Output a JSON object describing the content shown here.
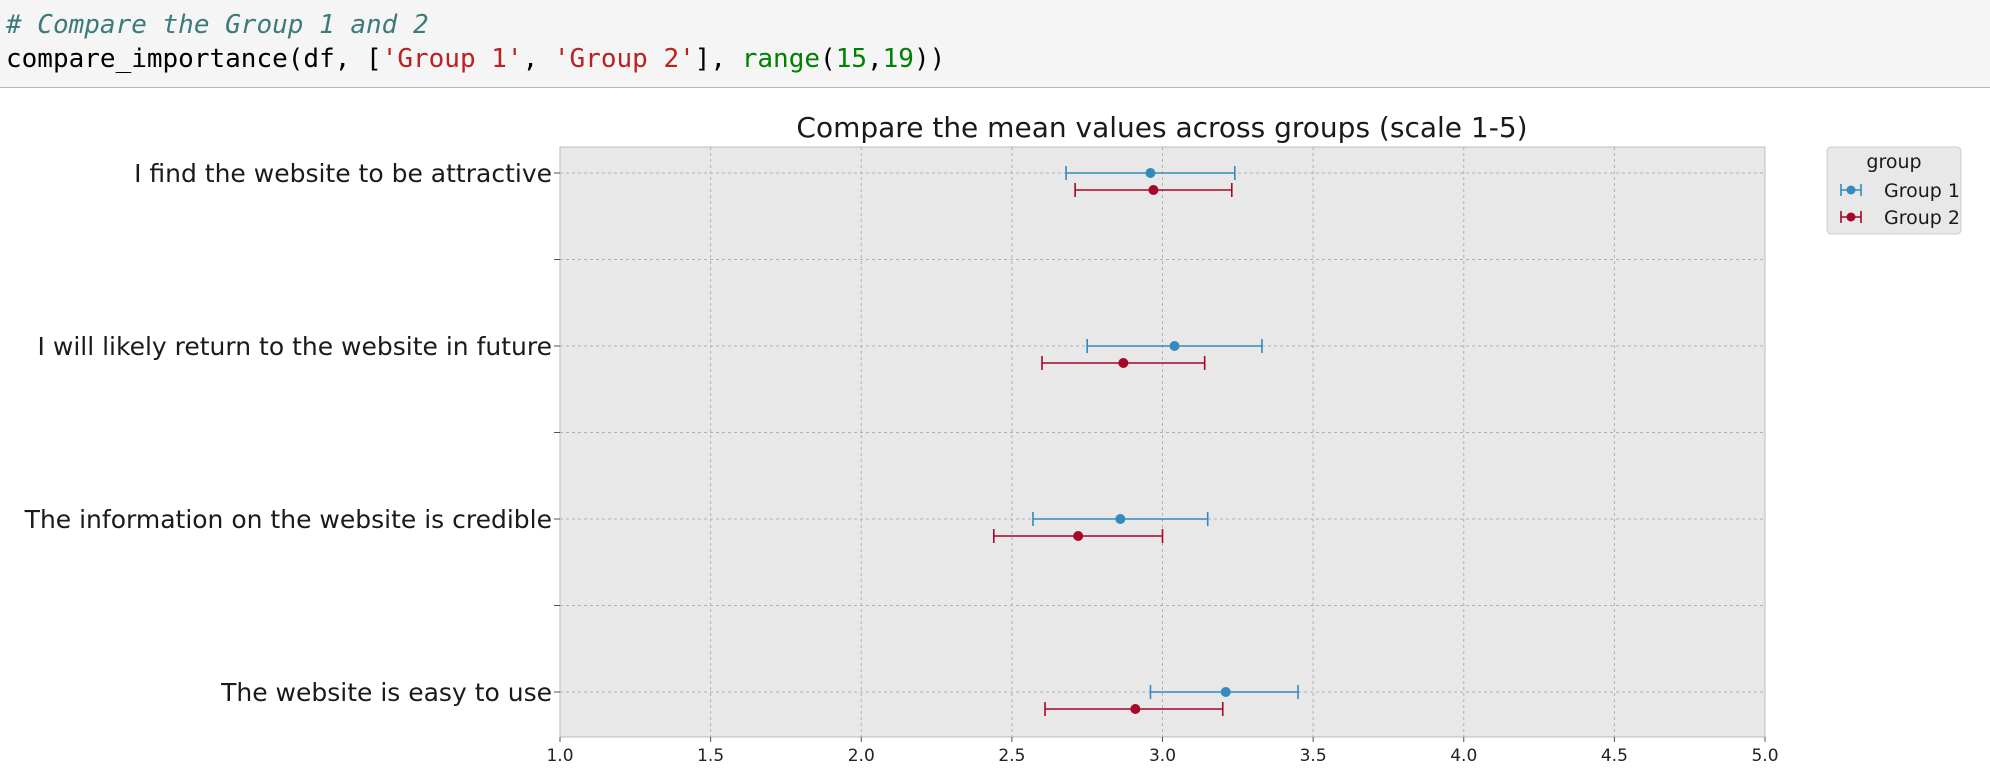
{
  "code": {
    "comment": "# Compare the Group 1 and 2",
    "func": "compare_importance(df, [",
    "arg1": "'Group 1'",
    "sep": ", ",
    "arg2": "'Group 2'",
    "close1": "], ",
    "range_kw": "range",
    "open": "(",
    "n1": "15",
    "comma": ",",
    "n2": "19",
    "close2": "))"
  },
  "chart_data": {
    "type": "errorbar",
    "title": "Compare the mean values across groups (scale 1-5)",
    "categories": [
      "I find the website to be attractive",
      "I will likely return to the website in future",
      "The information on the website is credible",
      "The website is easy to use"
    ],
    "xlim": [
      1.0,
      5.0
    ],
    "xticks": [
      "1.0",
      "1.5",
      "2.0",
      "2.5",
      "3.0",
      "3.5",
      "4.0",
      "4.5",
      "5.0"
    ],
    "grid": true,
    "legend": {
      "title": "group",
      "placement": "outside-top-right"
    },
    "series": [
      {
        "name": "Group 1",
        "color": "#348abd",
        "mean": [
          2.96,
          3.04,
          2.86,
          3.21
        ],
        "lower": [
          2.68,
          2.75,
          2.57,
          2.96
        ],
        "upper": [
          3.24,
          3.33,
          3.15,
          3.45
        ]
      },
      {
        "name": "Group 2",
        "color": "#a60628",
        "mean": [
          2.97,
          2.87,
          2.72,
          2.91
        ],
        "lower": [
          2.71,
          2.6,
          2.44,
          2.61
        ],
        "upper": [
          3.23,
          3.14,
          3.0,
          3.2
        ]
      }
    ]
  }
}
